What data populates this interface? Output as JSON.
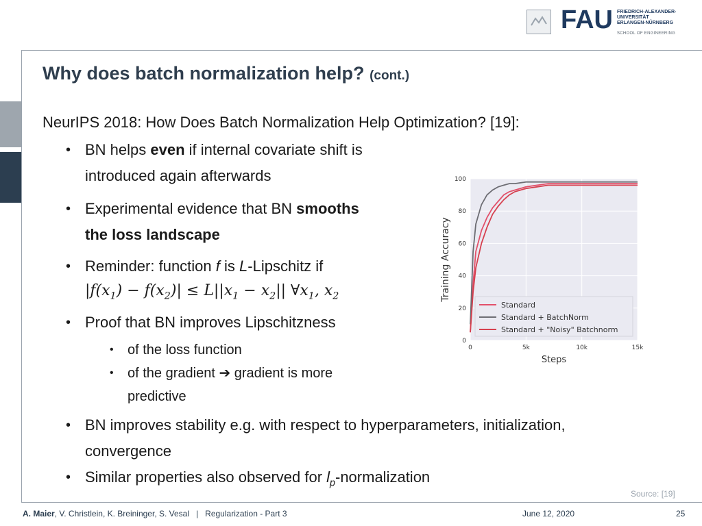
{
  "header": {
    "logo_name": "FAU",
    "logo_lines": [
      "FRIEDRICH-ALEXANDER-",
      "UNIVERSITÄT",
      "ERLANGEN-NÜRNBERG"
    ],
    "school": "SCHOOL OF ENGINEERING",
    "brand_color": "#1f3a5f"
  },
  "slide": {
    "title": "Why does batch normalization help?",
    "title_suffix": "(cont.)",
    "intro": "NeurIPS 2018: How Does Batch Normalization Help Optimization? [19]:",
    "bullets": {
      "b1_pre": "BN helps ",
      "b1_bold": "even",
      "b1_post": " if internal covariate shift is",
      "b1_line2": "introduced again afterwards",
      "b2_pre": "Experimental evidence that BN ",
      "b2_bold": "smooths",
      "b2_line2_bold": "the loss landscape",
      "b3_pre": "Reminder: function ",
      "b3_f": "f",
      "b3_mid": " is ",
      "b3_L": "L",
      "b3_post": "-Lipschitz if",
      "b4": "Proof that BN improves Lipschitzness",
      "sub1": "of the loss function",
      "sub2_pre": "of the gradient ",
      "sub2_arrow": "➔",
      "sub2_post": " gradient is more",
      "sub2_line2": "predictive",
      "b5": "BN improves stability e.g. with respect to hyperparameters, initialization,",
      "b5_line2": "convergence",
      "b6_pre": "Similar properties also observed for ",
      "b6_l": "l",
      "b6_p": "p",
      "b6_post": "-normalization"
    },
    "formula": {
      "a": "|f(x",
      "a_sub": "1",
      "b": ") − f(x",
      "b_sub": "2",
      "c": ")| ≤ L||x",
      "c_sub": "1",
      "d": " − x",
      "d_sub": "2",
      "e": "||   ∀x",
      "e_sub": "1",
      "f": ", x",
      "f_sub": "2"
    },
    "source": "Source: [19]"
  },
  "footer": {
    "author_bold": "A. Maier",
    "authors_rest": ", V. Christlein, K. Breininger, S. Vesal",
    "separator": "|",
    "lecture": "Regularization - Part 3",
    "date": "June 12, 2020",
    "page": "25"
  },
  "chart_data": {
    "type": "line",
    "xlabel": "Steps",
    "ylabel": "Training Accuracy",
    "xlim": [
      0,
      15000
    ],
    "ylim": [
      0,
      100
    ],
    "x_ticks": [
      0,
      5000,
      10000,
      15000
    ],
    "x_tick_labels": [
      "0",
      "5k",
      "10k",
      "15k"
    ],
    "y_ticks": [
      0,
      20,
      40,
      60,
      80,
      100
    ],
    "grid": true,
    "legend_position": "bottom-right",
    "series": [
      {
        "name": "Standard",
        "color": "#e2506a",
        "x": [
          0,
          250,
          500,
          1000,
          1500,
          2000,
          2500,
          3000,
          3500,
          4000,
          5000,
          6000,
          7000,
          8000,
          10000,
          12000,
          15000
        ],
        "y": [
          5,
          35,
          55,
          68,
          76,
          82,
          86,
          90,
          92,
          93,
          95,
          96,
          97,
          97,
          97,
          97,
          97
        ]
      },
      {
        "name": "Standard + BatchNorm",
        "color": "#6d6d73",
        "x": [
          0,
          250,
          500,
          1000,
          1500,
          2000,
          2500,
          3000,
          3500,
          4000,
          5000,
          6000,
          8000,
          10000,
          12000,
          15000
        ],
        "y": [
          10,
          55,
          72,
          84,
          90,
          93,
          95,
          96,
          97,
          97,
          98,
          98,
          98,
          98,
          98,
          98
        ]
      },
      {
        "name": "Standard + \"Noisy\" Batchnorm",
        "color": "#d6404f",
        "x": [
          0,
          250,
          500,
          1000,
          1500,
          2000,
          2500,
          3000,
          3500,
          4000,
          5000,
          6000,
          7000,
          8000,
          10000,
          12000,
          15000
        ],
        "y": [
          5,
          30,
          45,
          60,
          70,
          78,
          83,
          87,
          90,
          92,
          94,
          95,
          96,
          96,
          96,
          96,
          96
        ]
      }
    ]
  }
}
